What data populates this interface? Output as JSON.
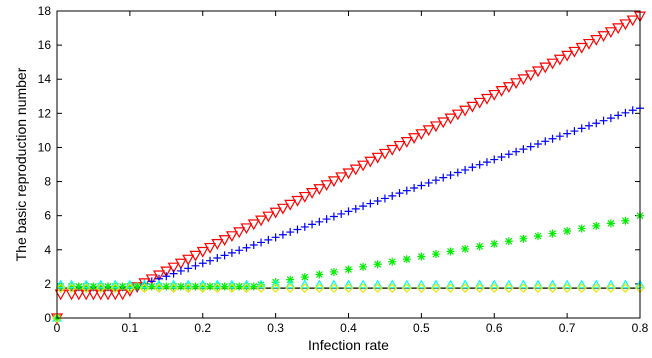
{
  "chart_data": {
    "type": "scatter",
    "title": "",
    "xlabel": "Infection rate",
    "ylabel": "The basic reproduction number",
    "xlim": [
      0,
      0.8
    ],
    "ylim": [
      0,
      18
    ],
    "xticks": [
      0,
      0.1,
      0.2,
      0.3,
      0.4,
      0.5,
      0.6,
      0.7,
      0.8
    ],
    "xtick_labels": [
      "0",
      "0.1",
      "0.2",
      "0.3",
      "0.4",
      "0.5",
      "0.6",
      "0.7",
      "0.8"
    ],
    "yticks": [
      0,
      2,
      4,
      6,
      8,
      10,
      12,
      14,
      16,
      18
    ],
    "ytick_labels": [
      "0",
      "2",
      "4",
      "6",
      "8",
      "10",
      "12",
      "14",
      "16",
      "18"
    ],
    "grid": false,
    "legend": "none",
    "baseline": {
      "y": 1.75,
      "color": "#000000"
    },
    "series": [
      {
        "marker": "triangle-down",
        "color": "#ff0000",
        "points": [
          [
            0,
            0
          ],
          [
            0.005,
            1.4
          ],
          [
            0.02,
            1.4
          ],
          [
            0.03,
            1.4
          ],
          [
            0.04,
            1.4
          ],
          [
            0.05,
            1.4
          ],
          [
            0.06,
            1.4
          ],
          [
            0.07,
            1.4
          ],
          [
            0.08,
            1.4
          ],
          [
            0.09,
            1.4
          ],
          [
            0.1,
            1.6
          ],
          [
            0.11,
            1.83
          ],
          [
            0.12,
            2.06
          ],
          [
            0.13,
            2.29
          ],
          [
            0.14,
            2.52
          ],
          [
            0.15,
            2.75
          ],
          [
            0.16,
            2.98
          ],
          [
            0.17,
            3.21
          ],
          [
            0.18,
            3.44
          ],
          [
            0.19,
            3.67
          ],
          [
            0.2,
            3.9
          ],
          [
            0.21,
            4.13
          ],
          [
            0.22,
            4.36
          ],
          [
            0.23,
            4.59
          ],
          [
            0.24,
            4.82
          ],
          [
            0.25,
            5.05
          ],
          [
            0.26,
            5.28
          ],
          [
            0.27,
            5.51
          ],
          [
            0.28,
            5.74
          ],
          [
            0.29,
            5.97
          ],
          [
            0.3,
            6.2
          ],
          [
            0.31,
            6.43
          ],
          [
            0.32,
            6.66
          ],
          [
            0.33,
            6.89
          ],
          [
            0.34,
            7.12
          ],
          [
            0.35,
            7.35
          ],
          [
            0.36,
            7.58
          ],
          [
            0.37,
            7.81
          ],
          [
            0.38,
            8.04
          ],
          [
            0.39,
            8.27
          ],
          [
            0.4,
            8.5
          ],
          [
            0.41,
            8.73
          ],
          [
            0.42,
            8.96
          ],
          [
            0.43,
            9.19
          ],
          [
            0.44,
            9.42
          ],
          [
            0.45,
            9.65
          ],
          [
            0.46,
            9.88
          ],
          [
            0.47,
            10.11
          ],
          [
            0.48,
            10.34
          ],
          [
            0.49,
            10.57
          ],
          [
            0.5,
            10.8
          ],
          [
            0.51,
            11.03
          ],
          [
            0.52,
            11.26
          ],
          [
            0.53,
            11.49
          ],
          [
            0.54,
            11.72
          ],
          [
            0.55,
            11.95
          ],
          [
            0.56,
            12.18
          ],
          [
            0.57,
            12.41
          ],
          [
            0.58,
            12.64
          ],
          [
            0.59,
            12.87
          ],
          [
            0.6,
            13.1
          ],
          [
            0.61,
            13.33
          ],
          [
            0.62,
            13.56
          ],
          [
            0.63,
            13.79
          ],
          [
            0.64,
            14.02
          ],
          [
            0.65,
            14.25
          ],
          [
            0.66,
            14.48
          ],
          [
            0.67,
            14.71
          ],
          [
            0.68,
            14.94
          ],
          [
            0.69,
            15.17
          ],
          [
            0.7,
            15.4
          ],
          [
            0.71,
            15.63
          ],
          [
            0.72,
            15.86
          ],
          [
            0.73,
            16.09
          ],
          [
            0.74,
            16.32
          ],
          [
            0.75,
            16.55
          ],
          [
            0.76,
            16.78
          ],
          [
            0.77,
            17.01
          ],
          [
            0.78,
            17.24
          ],
          [
            0.79,
            17.47
          ],
          [
            0.8,
            17.7
          ]
        ]
      },
      {
        "marker": "plus",
        "color": "#0000ff",
        "points": [
          [
            0,
            0
          ],
          [
            0.005,
            1.8
          ],
          [
            0.02,
            1.8
          ],
          [
            0.03,
            1.8
          ],
          [
            0.04,
            1.8
          ],
          [
            0.05,
            1.8
          ],
          [
            0.06,
            1.8
          ],
          [
            0.07,
            1.8
          ],
          [
            0.08,
            1.8
          ],
          [
            0.09,
            1.8
          ],
          [
            0.1,
            1.8
          ],
          [
            0.11,
            1.8
          ],
          [
            0.12,
            2.0
          ],
          [
            0.13,
            2.15
          ],
          [
            0.14,
            2.3
          ],
          [
            0.15,
            2.45
          ],
          [
            0.16,
            2.6
          ],
          [
            0.17,
            2.76
          ],
          [
            0.18,
            2.91
          ],
          [
            0.19,
            3.06
          ],
          [
            0.2,
            3.21
          ],
          [
            0.21,
            3.36
          ],
          [
            0.22,
            3.52
          ],
          [
            0.23,
            3.67
          ],
          [
            0.24,
            3.82
          ],
          [
            0.25,
            3.97
          ],
          [
            0.26,
            4.12
          ],
          [
            0.27,
            4.28
          ],
          [
            0.28,
            4.43
          ],
          [
            0.29,
            4.58
          ],
          [
            0.3,
            4.73
          ],
          [
            0.31,
            4.88
          ],
          [
            0.32,
            5.04
          ],
          [
            0.33,
            5.19
          ],
          [
            0.34,
            5.34
          ],
          [
            0.35,
            5.49
          ],
          [
            0.36,
            5.64
          ],
          [
            0.37,
            5.8
          ],
          [
            0.38,
            5.95
          ],
          [
            0.39,
            6.1
          ],
          [
            0.4,
            6.25
          ],
          [
            0.41,
            6.4
          ],
          [
            0.42,
            6.56
          ],
          [
            0.43,
            6.71
          ],
          [
            0.44,
            6.86
          ],
          [
            0.45,
            7.01
          ],
          [
            0.46,
            7.16
          ],
          [
            0.47,
            7.32
          ],
          [
            0.48,
            7.47
          ],
          [
            0.49,
            7.62
          ],
          [
            0.5,
            7.77
          ],
          [
            0.51,
            7.92
          ],
          [
            0.52,
            8.08
          ],
          [
            0.53,
            8.23
          ],
          [
            0.54,
            8.38
          ],
          [
            0.55,
            8.53
          ],
          [
            0.56,
            8.68
          ],
          [
            0.57,
            8.84
          ],
          [
            0.58,
            8.99
          ],
          [
            0.59,
            9.14
          ],
          [
            0.6,
            9.29
          ],
          [
            0.61,
            9.44
          ],
          [
            0.62,
            9.6
          ],
          [
            0.63,
            9.75
          ],
          [
            0.64,
            9.9
          ],
          [
            0.65,
            10.05
          ],
          [
            0.66,
            10.2
          ],
          [
            0.67,
            10.36
          ],
          [
            0.68,
            10.51
          ],
          [
            0.69,
            10.66
          ],
          [
            0.7,
            10.81
          ],
          [
            0.71,
            10.96
          ],
          [
            0.72,
            11.12
          ],
          [
            0.73,
            11.27
          ],
          [
            0.74,
            11.42
          ],
          [
            0.75,
            11.57
          ],
          [
            0.76,
            11.72
          ],
          [
            0.77,
            11.88
          ],
          [
            0.78,
            12.03
          ],
          [
            0.79,
            12.18
          ],
          [
            0.8,
            12.3
          ]
        ]
      },
      {
        "marker": "asterisk",
        "color": "#00ee00",
        "points": [
          [
            0,
            0
          ],
          [
            0.005,
            1.85
          ],
          [
            0.02,
            1.85
          ],
          [
            0.03,
            1.85
          ],
          [
            0.04,
            1.85
          ],
          [
            0.05,
            1.85
          ],
          [
            0.06,
            1.85
          ],
          [
            0.07,
            1.85
          ],
          [
            0.08,
            1.85
          ],
          [
            0.09,
            1.85
          ],
          [
            0.1,
            1.85
          ],
          [
            0.11,
            1.85
          ],
          [
            0.12,
            1.85
          ],
          [
            0.13,
            1.85
          ],
          [
            0.14,
            1.85
          ],
          [
            0.15,
            1.85
          ],
          [
            0.16,
            1.85
          ],
          [
            0.17,
            1.85
          ],
          [
            0.18,
            1.85
          ],
          [
            0.19,
            1.85
          ],
          [
            0.2,
            1.85
          ],
          [
            0.21,
            1.85
          ],
          [
            0.22,
            1.85
          ],
          [
            0.23,
            1.85
          ],
          [
            0.24,
            1.85
          ],
          [
            0.25,
            1.85
          ],
          [
            0.26,
            1.85
          ],
          [
            0.27,
            1.85
          ],
          [
            0.28,
            1.95
          ],
          [
            0.3,
            2.1
          ],
          [
            0.32,
            2.25
          ],
          [
            0.34,
            2.4
          ],
          [
            0.36,
            2.55
          ],
          [
            0.38,
            2.7
          ],
          [
            0.4,
            2.85
          ],
          [
            0.42,
            3.0
          ],
          [
            0.44,
            3.15
          ],
          [
            0.46,
            3.3
          ],
          [
            0.48,
            3.45
          ],
          [
            0.5,
            3.6
          ],
          [
            0.52,
            3.75
          ],
          [
            0.54,
            3.9
          ],
          [
            0.56,
            4.05
          ],
          [
            0.58,
            4.2
          ],
          [
            0.6,
            4.35
          ],
          [
            0.62,
            4.5
          ],
          [
            0.64,
            4.65
          ],
          [
            0.66,
            4.8
          ],
          [
            0.68,
            4.95
          ],
          [
            0.7,
            5.1
          ],
          [
            0.72,
            5.25
          ],
          [
            0.74,
            5.4
          ],
          [
            0.76,
            5.55
          ],
          [
            0.78,
            5.7
          ],
          [
            0.8,
            6.0
          ]
        ]
      },
      {
        "marker": "triangle-up",
        "color": "#00ffff",
        "points": [
          [
            0,
            0
          ],
          [
            0.005,
            1.95
          ],
          [
            0.02,
            1.95
          ],
          [
            0.04,
            1.95
          ],
          [
            0.06,
            1.95
          ],
          [
            0.08,
            1.95
          ],
          [
            0.1,
            1.95
          ],
          [
            0.12,
            1.95
          ],
          [
            0.14,
            1.95
          ],
          [
            0.16,
            1.95
          ],
          [
            0.18,
            1.95
          ],
          [
            0.2,
            1.95
          ],
          [
            0.22,
            1.95
          ],
          [
            0.24,
            1.95
          ],
          [
            0.26,
            1.95
          ],
          [
            0.28,
            1.95
          ],
          [
            0.3,
            1.95
          ],
          [
            0.32,
            1.95
          ],
          [
            0.34,
            1.95
          ],
          [
            0.36,
            1.95
          ],
          [
            0.38,
            1.95
          ],
          [
            0.4,
            1.95
          ],
          [
            0.42,
            1.95
          ],
          [
            0.44,
            1.95
          ],
          [
            0.46,
            1.95
          ],
          [
            0.48,
            1.95
          ],
          [
            0.5,
            1.95
          ],
          [
            0.52,
            1.95
          ],
          [
            0.54,
            1.95
          ],
          [
            0.56,
            1.95
          ],
          [
            0.58,
            1.95
          ],
          [
            0.6,
            1.95
          ],
          [
            0.62,
            1.95
          ],
          [
            0.64,
            1.95
          ],
          [
            0.66,
            1.95
          ],
          [
            0.68,
            1.95
          ],
          [
            0.7,
            1.95
          ],
          [
            0.72,
            1.95
          ],
          [
            0.74,
            1.95
          ],
          [
            0.76,
            1.95
          ],
          [
            0.78,
            1.95
          ],
          [
            0.8,
            1.95
          ]
        ]
      },
      {
        "marker": "diamond",
        "color": "#e6e600",
        "points": [
          [
            0,
            0
          ],
          [
            0.005,
            1.75
          ],
          [
            0.02,
            1.75
          ],
          [
            0.04,
            1.75
          ],
          [
            0.06,
            1.75
          ],
          [
            0.08,
            1.75
          ],
          [
            0.1,
            1.75
          ],
          [
            0.12,
            1.75
          ],
          [
            0.14,
            1.75
          ],
          [
            0.16,
            1.75
          ],
          [
            0.18,
            1.75
          ],
          [
            0.2,
            1.75
          ],
          [
            0.22,
            1.75
          ],
          [
            0.24,
            1.75
          ],
          [
            0.26,
            1.75
          ],
          [
            0.28,
            1.75
          ],
          [
            0.3,
            1.75
          ],
          [
            0.32,
            1.75
          ],
          [
            0.34,
            1.75
          ],
          [
            0.36,
            1.75
          ],
          [
            0.38,
            1.75
          ],
          [
            0.4,
            1.75
          ],
          [
            0.42,
            1.75
          ],
          [
            0.44,
            1.75
          ],
          [
            0.46,
            1.75
          ],
          [
            0.48,
            1.75
          ],
          [
            0.5,
            1.75
          ],
          [
            0.52,
            1.75
          ],
          [
            0.54,
            1.75
          ],
          [
            0.56,
            1.75
          ],
          [
            0.58,
            1.75
          ],
          [
            0.6,
            1.75
          ],
          [
            0.62,
            1.75
          ],
          [
            0.64,
            1.75
          ],
          [
            0.66,
            1.75
          ],
          [
            0.68,
            1.75
          ],
          [
            0.7,
            1.75
          ],
          [
            0.72,
            1.75
          ],
          [
            0.74,
            1.75
          ],
          [
            0.76,
            1.75
          ],
          [
            0.78,
            1.75
          ],
          [
            0.8,
            1.75
          ]
        ]
      }
    ]
  }
}
